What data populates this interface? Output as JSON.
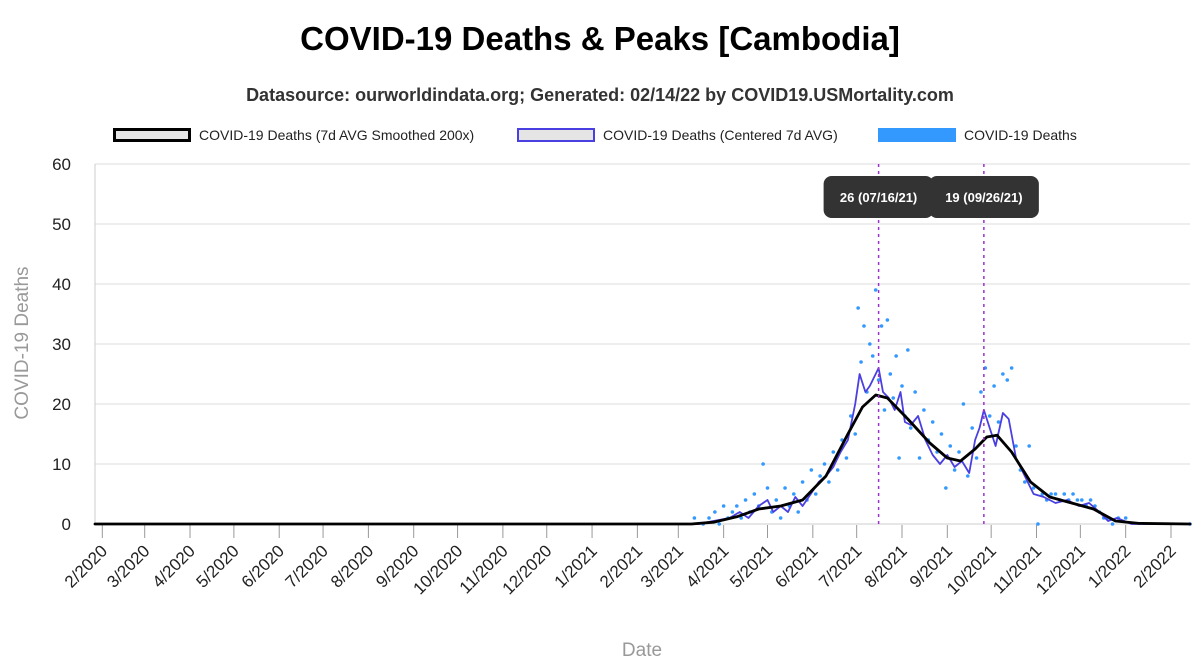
{
  "title": "COVID-19 Deaths & Peaks [Cambodia]",
  "subtitle": "Datasource: ourworldindata.org; Generated: 02/14/22 by COVID19.USMortality.com",
  "colors": {
    "smooth": "#000000",
    "centered": "#4a3fe0",
    "daily": "#3399ff",
    "peak_line": "#9933cc",
    "peak_box": "#333333",
    "grid": "#dddddd"
  },
  "legend": [
    {
      "label": "COVID-19 Deaths (7d AVG Smoothed 200x)",
      "color": "#000000",
      "fill": "#e5e5e5"
    },
    {
      "label": "COVID-19 Deaths (Centered 7d AVG)",
      "color": "#4a3fe0",
      "fill": "#e5e5e5"
    },
    {
      "label": "COVID-19 Deaths",
      "color": "#3399ff",
      "fill": "#3399ff"
    }
  ],
  "chart_data": {
    "type": "line",
    "title": "COVID-19 Deaths & Peaks [Cambodia]",
    "xlabel": "Date",
    "ylabel": "COVID-19 Deaths",
    "ylim": [
      0,
      60
    ],
    "yticks": [
      0,
      10,
      20,
      30,
      40,
      50,
      60
    ],
    "xlim": [
      "2020-01-27",
      "2022-02-14"
    ],
    "xticks": [
      {
        "date": "2020-02-01",
        "label": "2/2020"
      },
      {
        "date": "2020-03-01",
        "label": "3/2020"
      },
      {
        "date": "2020-04-01",
        "label": "4/2020"
      },
      {
        "date": "2020-05-01",
        "label": "5/2020"
      },
      {
        "date": "2020-06-01",
        "label": "6/2020"
      },
      {
        "date": "2020-07-01",
        "label": "7/2020"
      },
      {
        "date": "2020-08-01",
        "label": "8/2020"
      },
      {
        "date": "2020-09-01",
        "label": "9/2020"
      },
      {
        "date": "2020-10-01",
        "label": "10/2020"
      },
      {
        "date": "2020-11-01",
        "label": "11/2020"
      },
      {
        "date": "2020-12-01",
        "label": "12/2020"
      },
      {
        "date": "2021-01-01",
        "label": "1/2021"
      },
      {
        "date": "2021-02-01",
        "label": "2/2021"
      },
      {
        "date": "2021-03-01",
        "label": "3/2021"
      },
      {
        "date": "2021-04-01",
        "label": "4/2021"
      },
      {
        "date": "2021-05-01",
        "label": "5/2021"
      },
      {
        "date": "2021-06-01",
        "label": "6/2021"
      },
      {
        "date": "2021-07-01",
        "label": "7/2021"
      },
      {
        "date": "2021-08-01",
        "label": "8/2021"
      },
      {
        "date": "2021-09-01",
        "label": "9/2021"
      },
      {
        "date": "2021-10-01",
        "label": "10/2021"
      },
      {
        "date": "2021-11-01",
        "label": "11/2021"
      },
      {
        "date": "2021-12-01",
        "label": "12/2021"
      },
      {
        "date": "2022-01-01",
        "label": "1/2022"
      },
      {
        "date": "2022-02-01",
        "label": "2/2022"
      }
    ],
    "grid": true,
    "legend_position": "top",
    "peaks": [
      {
        "date": "2021-07-16",
        "value": 26,
        "label": "26 (07/16/21)"
      },
      {
        "date": "2021-09-26",
        "value": 19,
        "label": "19 (09/26/21)"
      }
    ],
    "series": [
      {
        "name": "COVID-19 Deaths (7d AVG Smoothed 200x)",
        "kind": "line",
        "points": [
          [
            "2020-01-27",
            0
          ],
          [
            "2021-03-10",
            0
          ],
          [
            "2021-03-25",
            0.3
          ],
          [
            "2021-04-10",
            1.2
          ],
          [
            "2021-04-25",
            2.5
          ],
          [
            "2021-05-10",
            3.0
          ],
          [
            "2021-05-25",
            4.0
          ],
          [
            "2021-06-10",
            8.0
          ],
          [
            "2021-06-25",
            15.0
          ],
          [
            "2021-07-05",
            19.5
          ],
          [
            "2021-07-14",
            21.5
          ],
          [
            "2021-07-22",
            21.0
          ],
          [
            "2021-08-05",
            17.5
          ],
          [
            "2021-08-20",
            13.5
          ],
          [
            "2021-09-01",
            11.0
          ],
          [
            "2021-09-10",
            10.5
          ],
          [
            "2021-09-20",
            12.5
          ],
          [
            "2021-09-28",
            14.5
          ],
          [
            "2021-10-05",
            14.8
          ],
          [
            "2021-10-15",
            12.0
          ],
          [
            "2021-10-28",
            7.0
          ],
          [
            "2021-11-10",
            4.5
          ],
          [
            "2021-11-25",
            3.5
          ],
          [
            "2021-12-10",
            2.5
          ],
          [
            "2021-12-25",
            0.5
          ],
          [
            "2022-01-10",
            0.1
          ],
          [
            "2022-02-14",
            0
          ]
        ]
      },
      {
        "name": "COVID-19 Deaths (Centered 7d AVG)",
        "kind": "line",
        "points": [
          [
            "2020-01-27",
            0
          ],
          [
            "2021-03-15",
            0
          ],
          [
            "2021-03-25",
            0.5
          ],
          [
            "2021-04-05",
            1.0
          ],
          [
            "2021-04-12",
            2.0
          ],
          [
            "2021-04-18",
            1.0
          ],
          [
            "2021-04-25",
            3.0
          ],
          [
            "2021-05-01",
            4.0
          ],
          [
            "2021-05-05",
            2.0
          ],
          [
            "2021-05-10",
            3.0
          ],
          [
            "2021-05-15",
            2.0
          ],
          [
            "2021-05-20",
            4.5
          ],
          [
            "2021-05-25",
            3.0
          ],
          [
            "2021-06-01",
            5.5
          ],
          [
            "2021-06-05",
            7.0
          ],
          [
            "2021-06-10",
            8.0
          ],
          [
            "2021-06-15",
            9.5
          ],
          [
            "2021-06-20",
            12.0
          ],
          [
            "2021-06-25",
            14.0
          ],
          [
            "2021-06-30",
            20.0
          ],
          [
            "2021-07-03",
            25.0
          ],
          [
            "2021-07-07",
            22.0
          ],
          [
            "2021-07-10",
            23.0
          ],
          [
            "2021-07-13",
            24.5
          ],
          [
            "2021-07-16",
            26.0
          ],
          [
            "2021-07-19",
            22.0
          ],
          [
            "2021-07-23",
            21.0
          ],
          [
            "2021-07-27",
            19.0
          ],
          [
            "2021-07-31",
            22.0
          ],
          [
            "2021-08-03",
            17.0
          ],
          [
            "2021-08-07",
            16.5
          ],
          [
            "2021-08-12",
            18.0
          ],
          [
            "2021-08-17",
            14.0
          ],
          [
            "2021-08-22",
            11.5
          ],
          [
            "2021-08-27",
            10.0
          ],
          [
            "2021-09-01",
            11.5
          ],
          [
            "2021-09-06",
            9.5
          ],
          [
            "2021-09-11",
            10.5
          ],
          [
            "2021-09-16",
            8.5
          ],
          [
            "2021-09-20",
            14.0
          ],
          [
            "2021-09-23",
            16.0
          ],
          [
            "2021-09-26",
            19.0
          ],
          [
            "2021-09-30",
            16.0
          ],
          [
            "2021-10-04",
            13.0
          ],
          [
            "2021-10-09",
            18.5
          ],
          [
            "2021-10-13",
            17.5
          ],
          [
            "2021-10-18",
            11.0
          ],
          [
            "2021-10-24",
            8.0
          ],
          [
            "2021-10-30",
            5.0
          ],
          [
            "2021-11-06",
            4.5
          ],
          [
            "2021-11-14",
            3.5
          ],
          [
            "2021-11-22",
            4.0
          ],
          [
            "2021-11-30",
            3.0
          ],
          [
            "2021-12-07",
            3.5
          ],
          [
            "2021-12-14",
            2.0
          ],
          [
            "2021-12-20",
            0.5
          ],
          [
            "2021-12-26",
            1.0
          ],
          [
            "2022-01-05",
            0
          ],
          [
            "2022-02-14",
            0
          ]
        ]
      },
      {
        "name": "COVID-19 Deaths",
        "kind": "scatter",
        "points": [
          [
            "2021-03-12",
            1
          ],
          [
            "2021-03-18",
            0
          ],
          [
            "2021-03-22",
            1
          ],
          [
            "2021-03-26",
            2
          ],
          [
            "2021-03-29",
            0
          ],
          [
            "2021-04-01",
            3
          ],
          [
            "2021-04-04",
            1
          ],
          [
            "2021-04-07",
            2
          ],
          [
            "2021-04-10",
            3
          ],
          [
            "2021-04-13",
            1
          ],
          [
            "2021-04-16",
            4
          ],
          [
            "2021-04-19",
            2
          ],
          [
            "2021-04-22",
            5
          ],
          [
            "2021-04-25",
            3
          ],
          [
            "2021-04-28",
            10
          ],
          [
            "2021-05-01",
            6
          ],
          [
            "2021-05-04",
            2
          ],
          [
            "2021-05-07",
            4
          ],
          [
            "2021-05-10",
            1
          ],
          [
            "2021-05-13",
            6
          ],
          [
            "2021-05-16",
            3
          ],
          [
            "2021-05-19",
            5
          ],
          [
            "2021-05-22",
            2
          ],
          [
            "2021-05-25",
            7
          ],
          [
            "2021-05-28",
            4
          ],
          [
            "2021-05-31",
            9
          ],
          [
            "2021-06-03",
            5
          ],
          [
            "2021-06-06",
            8
          ],
          [
            "2021-06-09",
            10
          ],
          [
            "2021-06-12",
            7
          ],
          [
            "2021-06-15",
            12
          ],
          [
            "2021-06-18",
            9
          ],
          [
            "2021-06-21",
            14
          ],
          [
            "2021-06-24",
            11
          ],
          [
            "2021-06-27",
            18
          ],
          [
            "2021-06-30",
            15
          ],
          [
            "2021-07-02",
            36
          ],
          [
            "2021-07-04",
            27
          ],
          [
            "2021-07-06",
            33
          ],
          [
            "2021-07-08",
            22
          ],
          [
            "2021-07-10",
            30
          ],
          [
            "2021-07-12",
            28
          ],
          [
            "2021-07-14",
            39
          ],
          [
            "2021-07-16",
            24
          ],
          [
            "2021-07-18",
            33
          ],
          [
            "2021-07-20",
            19
          ],
          [
            "2021-07-22",
            34
          ],
          [
            "2021-07-24",
            25
          ],
          [
            "2021-07-26",
            21
          ],
          [
            "2021-07-28",
            28
          ],
          [
            "2021-07-30",
            11
          ],
          [
            "2021-08-01",
            23
          ],
          [
            "2021-08-03",
            18
          ],
          [
            "2021-08-05",
            29
          ],
          [
            "2021-08-07",
            16
          ],
          [
            "2021-08-10",
            22
          ],
          [
            "2021-08-13",
            11
          ],
          [
            "2021-08-16",
            19
          ],
          [
            "2021-08-19",
            14
          ],
          [
            "2021-08-22",
            17
          ],
          [
            "2021-08-25",
            12
          ],
          [
            "2021-08-28",
            15
          ],
          [
            "2021-08-31",
            6
          ],
          [
            "2021-09-03",
            13
          ],
          [
            "2021-09-06",
            9
          ],
          [
            "2021-09-09",
            12
          ],
          [
            "2021-09-12",
            20
          ],
          [
            "2021-09-15",
            8
          ],
          [
            "2021-09-18",
            16
          ],
          [
            "2021-09-21",
            11
          ],
          [
            "2021-09-24",
            22
          ],
          [
            "2021-09-27",
            26
          ],
          [
            "2021-09-30",
            18
          ],
          [
            "2021-10-03",
            23
          ],
          [
            "2021-10-06",
            17
          ],
          [
            "2021-10-09",
            25
          ],
          [
            "2021-10-12",
            24
          ],
          [
            "2021-10-15",
            26
          ],
          [
            "2021-10-18",
            13
          ],
          [
            "2021-10-21",
            9
          ],
          [
            "2021-10-24",
            7
          ],
          [
            "2021-10-27",
            13
          ],
          [
            "2021-10-30",
            6
          ],
          [
            "2021-11-02",
            0
          ],
          [
            "2021-11-05",
            5
          ],
          [
            "2021-11-08",
            4
          ],
          [
            "2021-11-11",
            5
          ],
          [
            "2021-11-14",
            5
          ],
          [
            "2021-11-17",
            4
          ],
          [
            "2021-11-20",
            5
          ],
          [
            "2021-11-23",
            4
          ],
          [
            "2021-11-26",
            5
          ],
          [
            "2021-11-29",
            4
          ],
          [
            "2021-12-02",
            4
          ],
          [
            "2021-12-05",
            3
          ],
          [
            "2021-12-08",
            4
          ],
          [
            "2021-12-11",
            3
          ],
          [
            "2021-12-14",
            2
          ],
          [
            "2021-12-17",
            1
          ],
          [
            "2021-12-20",
            1
          ],
          [
            "2021-12-23",
            0
          ],
          [
            "2021-12-27",
            1
          ],
          [
            "2022-01-01",
            1
          ],
          [
            "2022-02-14",
            0
          ]
        ]
      }
    ]
  }
}
